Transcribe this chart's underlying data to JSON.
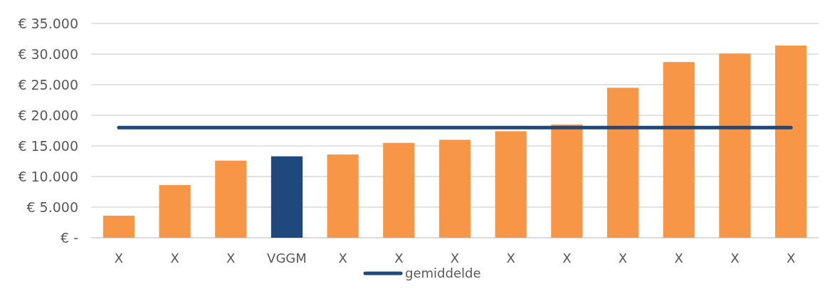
{
  "chart_data": {
    "type": "bar",
    "categories": [
      "X",
      "X",
      "X",
      "VGGM",
      "X",
      "X",
      "X",
      "X",
      "X",
      "X",
      "X",
      "X",
      "X"
    ],
    "series": [
      {
        "values": [
          3600,
          8600,
          12600,
          13300,
          13600,
          15500,
          16000,
          17400,
          18500,
          24500,
          28700,
          30100,
          31400
        ],
        "colors": [
          "#f79646",
          "#f79646",
          "#f79646",
          "#1f497d",
          "#f79646",
          "#f79646",
          "#f79646",
          "#f79646",
          "#f79646",
          "#f79646",
          "#f79646",
          "#f79646",
          "#f79646"
        ]
      },
      {
        "type": "line",
        "name": "gemiddelde",
        "color": "#1f497d",
        "values": [
          18000,
          18000,
          18000,
          18000,
          18000,
          18000,
          18000,
          18000,
          18000,
          18000,
          18000,
          18000,
          18000
        ]
      }
    ],
    "ylim": [
      0,
      35000
    ],
    "yticks": [
      {
        "value": 0,
        "label": "€ -"
      },
      {
        "value": 5000,
        "label": "€ 5.000"
      },
      {
        "value": 10000,
        "label": "€ 10.000"
      },
      {
        "value": 15000,
        "label": "€ 15.000"
      },
      {
        "value": 20000,
        "label": "€ 20.000"
      },
      {
        "value": 25000,
        "label": "€ 25.000"
      },
      {
        "value": 30000,
        "label": "€ 30.000"
      },
      {
        "value": 35000,
        "label": "€ 35.000"
      }
    ],
    "grid": "y",
    "legend": "bottom",
    "marker": "none",
    "line_style": "solid"
  }
}
